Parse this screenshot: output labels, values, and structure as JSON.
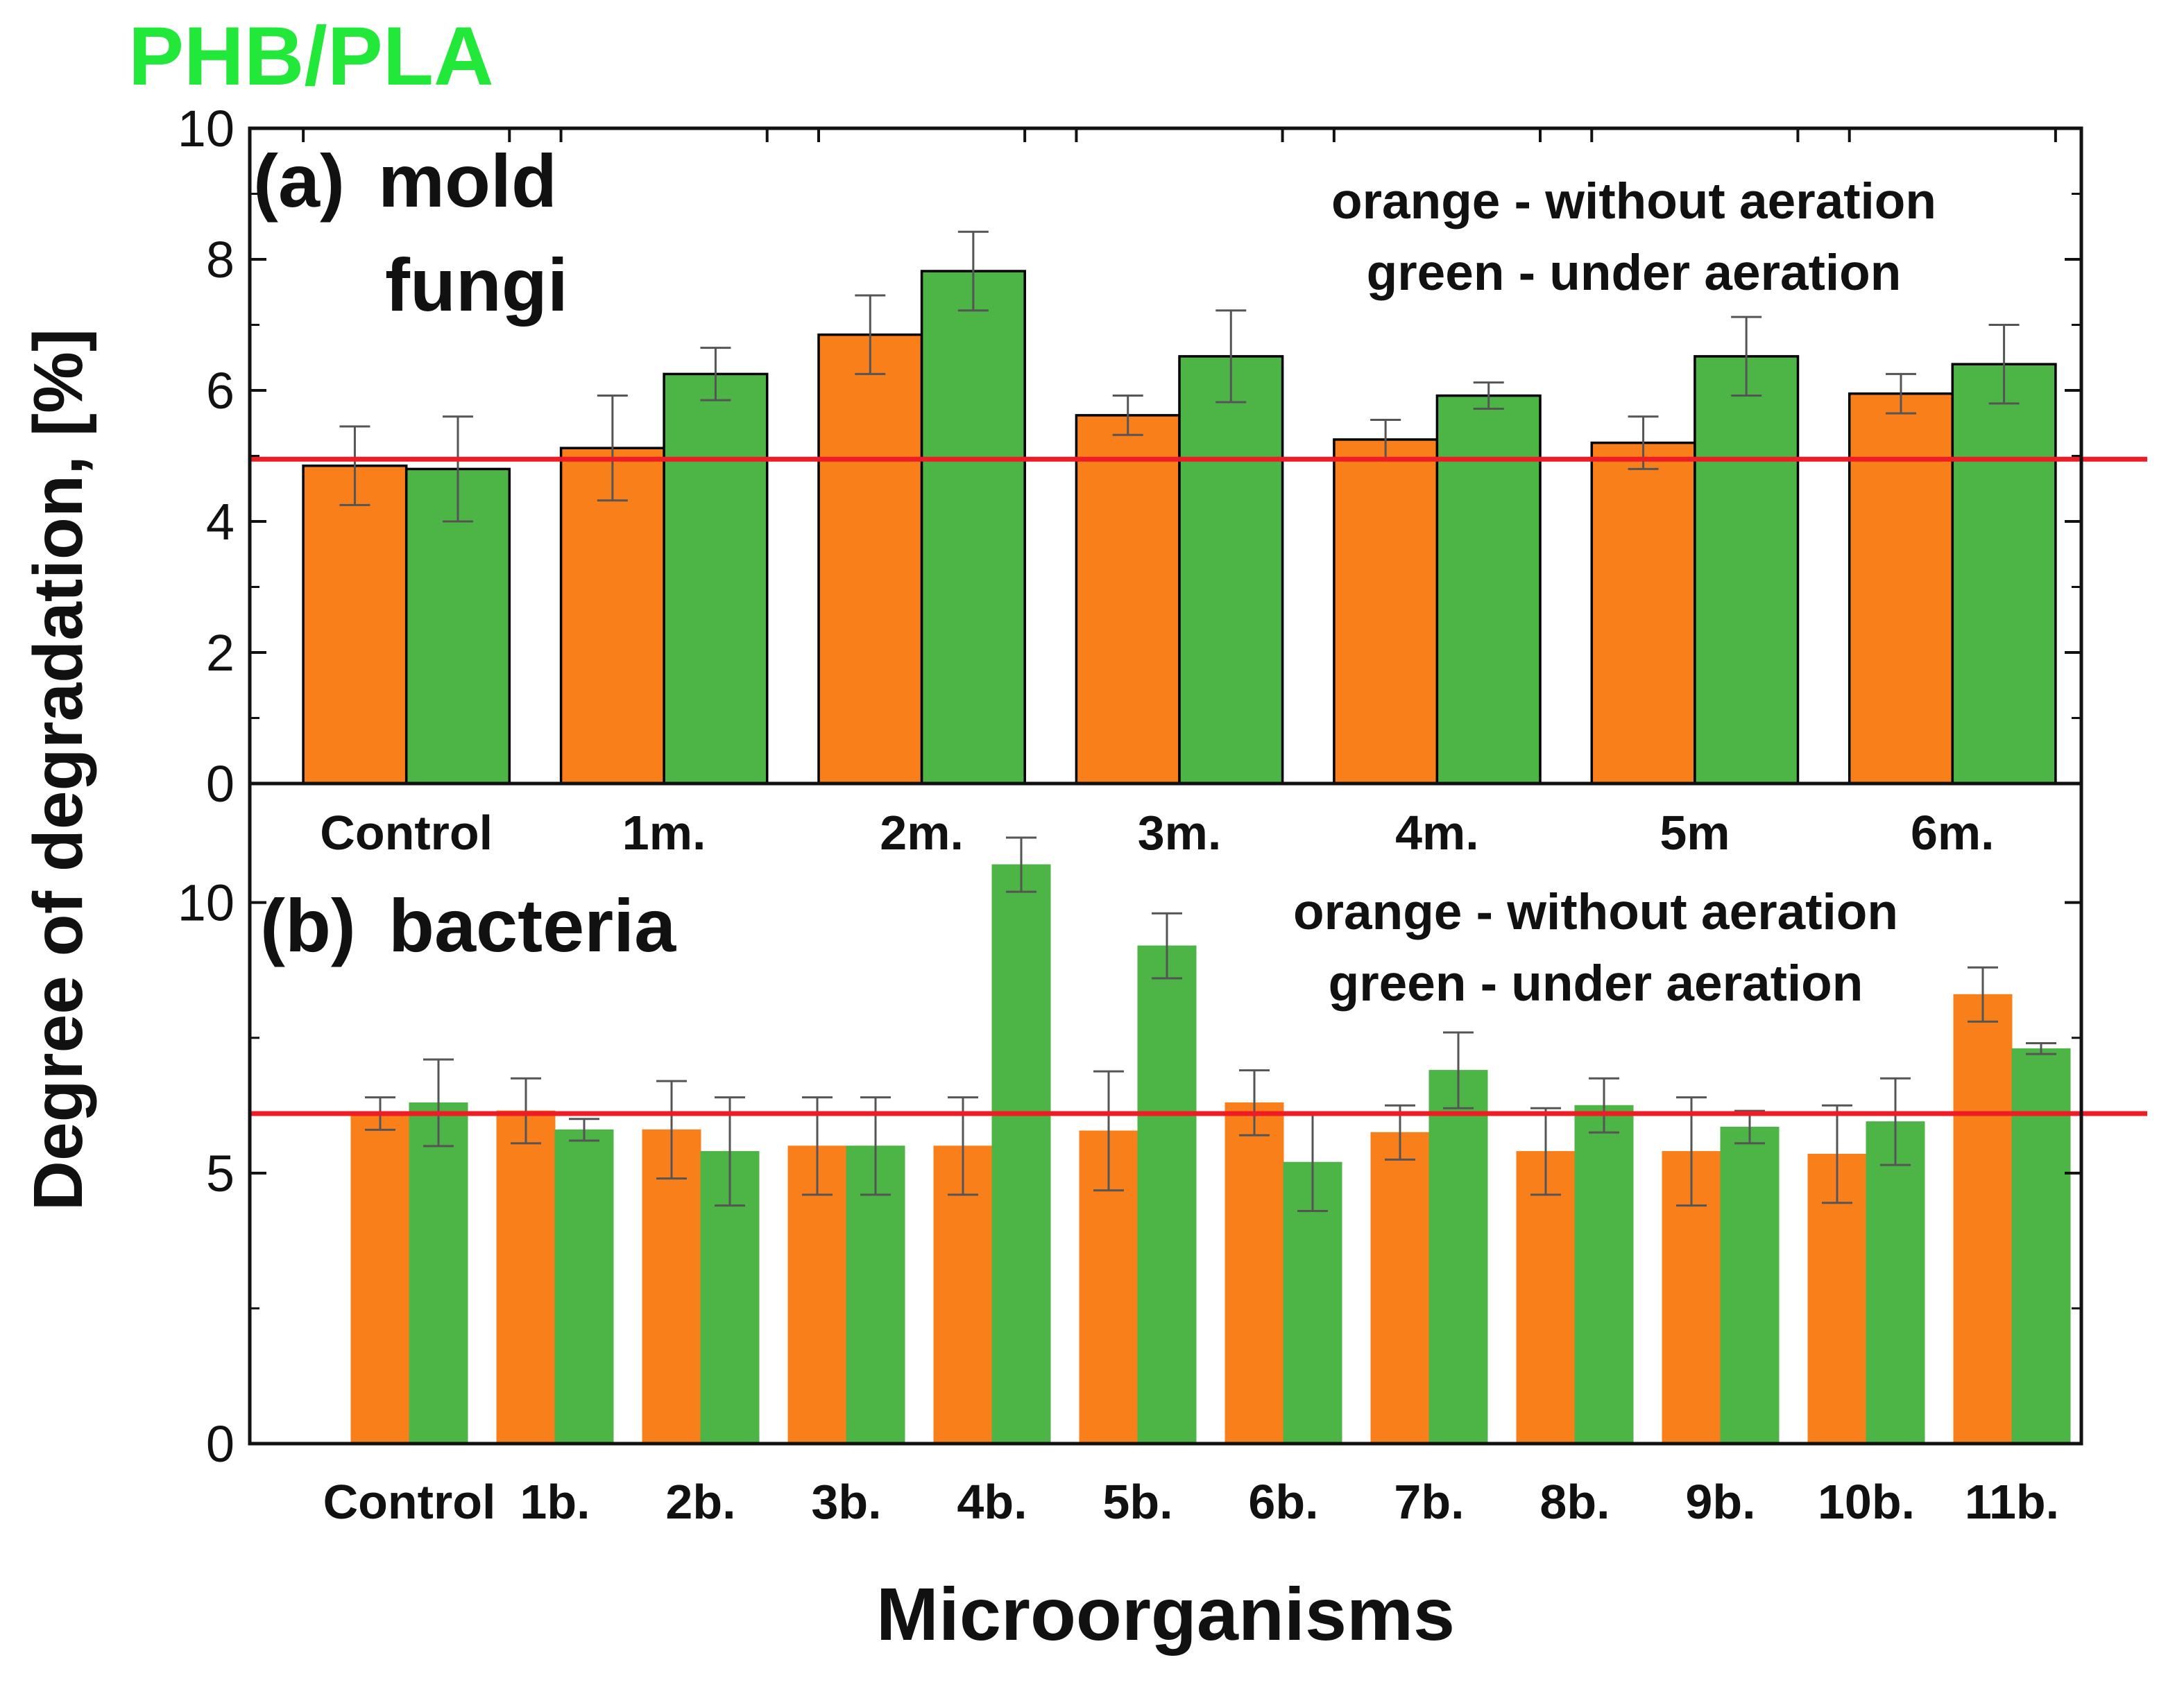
{
  "figure_title": "PHB/PLA",
  "ylabel": "Degree of degradation, [%]",
  "xlabel": "Microorganisms",
  "colors": {
    "orange": "#F97F1B",
    "green": "#4DB446",
    "reference_line": "#EE1C25",
    "title": "#22E83A"
  },
  "chart_data": [
    {
      "type": "bar",
      "panel": "a",
      "panel_label": "(a)",
      "title_lines": [
        "mold",
        "fungi"
      ],
      "legend_lines": [
        "orange - without aeration",
        "green - under aeration"
      ],
      "categories": [
        "Control",
        "1m.",
        "2m.",
        "3m.",
        "4m.",
        "5m",
        "6m."
      ],
      "series": [
        {
          "name": "without aeration",
          "color": "orange",
          "values": [
            4.85,
            5.12,
            6.85,
            5.62,
            5.25,
            5.2,
            5.95
          ],
          "errors": [
            0.6,
            0.8,
            0.6,
            0.3,
            0.3,
            0.4,
            0.3
          ]
        },
        {
          "name": "under aeration",
          "color": "green",
          "values": [
            4.8,
            6.25,
            7.82,
            6.52,
            5.92,
            6.52,
            6.4
          ],
          "errors": [
            0.8,
            0.4,
            0.6,
            0.7,
            0.2,
            0.6,
            0.6
          ]
        }
      ],
      "reference_line": 4.95,
      "ylim": [
        0,
        10
      ],
      "yticks": [
        0,
        2,
        4,
        6,
        8,
        10
      ],
      "bar_outline": true
    },
    {
      "type": "bar",
      "panel": "b",
      "panel_label": "(b)",
      "title_lines": [
        "bacteria"
      ],
      "legend_lines": [
        "orange - without aeration",
        "green - under aeration"
      ],
      "categories": [
        "Control",
        "1b.",
        "2b.",
        "3b.",
        "4b.",
        "5b.",
        "6b.",
        "7b.",
        "8b.",
        "9b.",
        "10b.",
        "11b."
      ],
      "series": [
        {
          "name": "without aeration",
          "color": "orange",
          "values": [
            6.1,
            6.15,
            5.8,
            5.5,
            5.5,
            5.78,
            6.3,
            5.75,
            5.4,
            5.4,
            5.35,
            8.3
          ],
          "errors": [
            0.3,
            0.6,
            0.9,
            0.9,
            0.9,
            1.1,
            0.6,
            0.5,
            0.8,
            1.0,
            0.9,
            0.5
          ]
        },
        {
          "name": "under aeration",
          "color": "green",
          "values": [
            6.3,
            5.8,
            5.4,
            5.5,
            10.7,
            9.2,
            5.2,
            6.9,
            6.25,
            5.85,
            5.95,
            7.3
          ],
          "errors": [
            0.8,
            0.2,
            1.0,
            0.9,
            0.5,
            0.6,
            0.9,
            0.7,
            0.5,
            0.3,
            0.8,
            0.1
          ]
        }
      ],
      "reference_line": 6.1,
      "ylim": [
        0,
        12.2
      ],
      "yticks": [
        0,
        5,
        10
      ],
      "bar_outline": false
    }
  ]
}
